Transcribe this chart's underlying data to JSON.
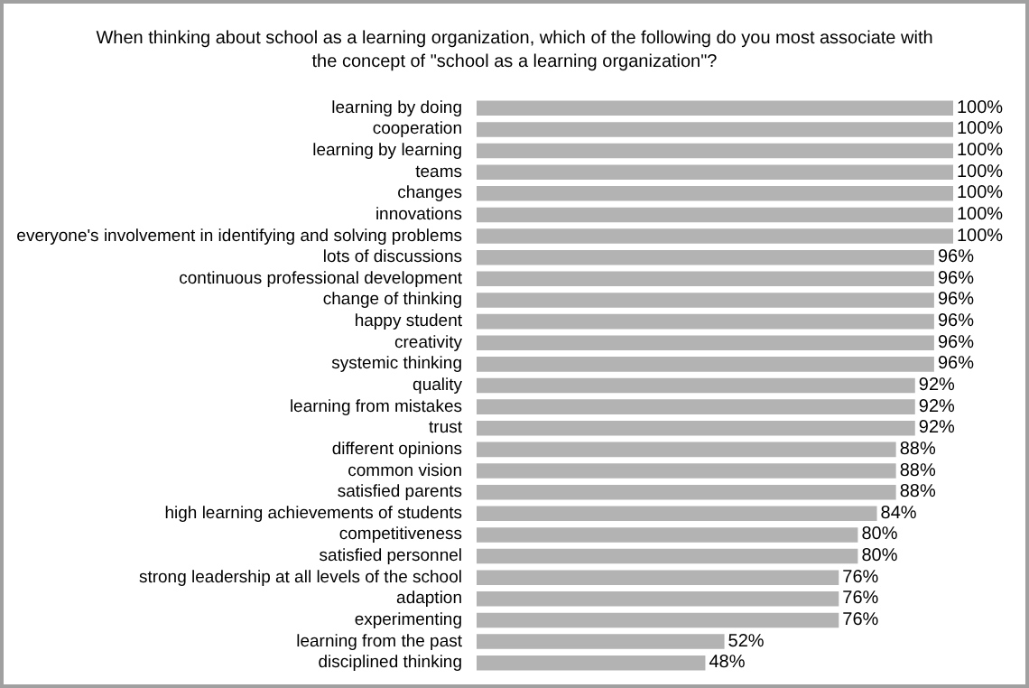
{
  "chart_data": {
    "type": "bar",
    "orientation": "horizontal",
    "title": "When thinking about school as a learning organization, which of the following do you most associate with\nthe concept of \"school as a learning organization\"?",
    "categories": [
      "learning by doing",
      "cooperation",
      "learning by learning",
      "teams",
      "changes",
      "innovations",
      "everyone's involvement in identifying and solving problems",
      "lots of discussions",
      "continuous professional development",
      "change of thinking",
      "happy student",
      "creativity",
      "systemic thinking",
      "quality",
      "learning from mistakes",
      "trust",
      "different opinions",
      "common vision",
      "satisfied parents",
      "high learning achievements of students",
      "competitiveness",
      "satisfied personnel",
      "strong leadership at all levels of the school",
      "adaption",
      "experimenting",
      "learning from the past",
      "disciplined thinking"
    ],
    "values": [
      100,
      100,
      100,
      100,
      100,
      100,
      100,
      96,
      96,
      96,
      96,
      96,
      96,
      92,
      92,
      92,
      88,
      88,
      88,
      84,
      80,
      80,
      76,
      76,
      76,
      52,
      48
    ],
    "value_labels": [
      "100%",
      "100%",
      "100%",
      "100%",
      "100%",
      "100%",
      "100%",
      "96%",
      "96%",
      "96%",
      "96%",
      "96%",
      "96%",
      "92%",
      "92%",
      "92%",
      "88%",
      "88%",
      "88%",
      "84%",
      "80%",
      "80%",
      "76%",
      "76%",
      "76%",
      "52%",
      "48%"
    ],
    "color": "#b3b3b3"
  }
}
